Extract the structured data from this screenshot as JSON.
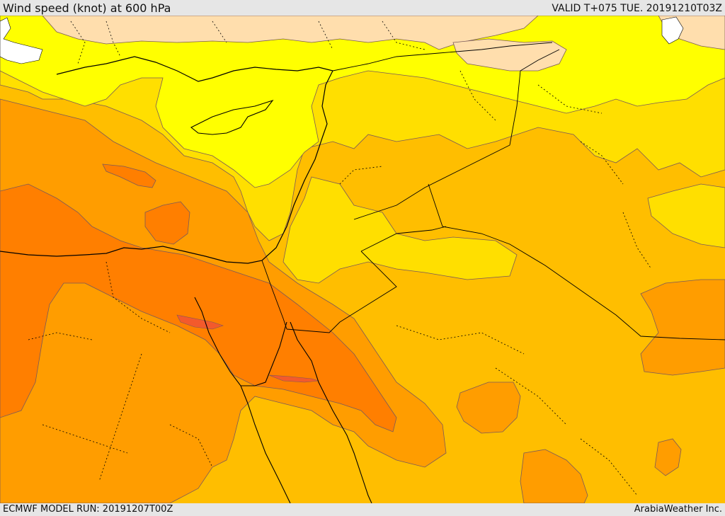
{
  "header": {
    "title": "Wind speed (knot) at 600 hPa",
    "valid_time": "VALID T+075 TUE. 20191210T03Z"
  },
  "footer": {
    "model_run": "ECMWF MODEL RUN: 20191207T00Z",
    "credit": "ArabiaWeather Inc."
  },
  "map": {
    "colors": {
      "band_5_10": "#ffdead",
      "band_10_15": "#ffff00",
      "band_15_20": "#ffdf00",
      "band_20_25": "#ffbe00",
      "band_25_30": "#ff9d00",
      "band_30_35": "#ff7f00",
      "band_35_40": "#f35a2c",
      "land_below_5": "#ffffff",
      "coastline": "#000000",
      "borders": "#000000",
      "contours": "#7a5a5a"
    }
  }
}
